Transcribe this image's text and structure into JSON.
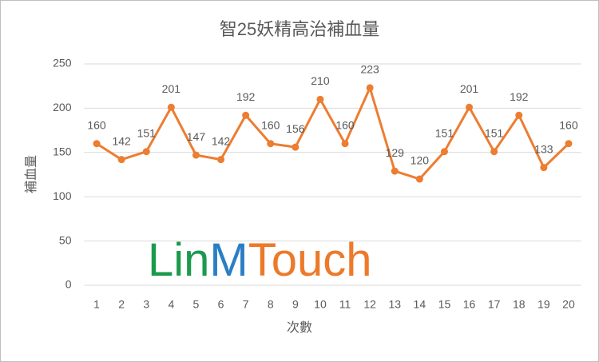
{
  "chart_data": {
    "type": "line",
    "title": "智25妖精高治補血量",
    "x_label": "次數",
    "y_label": "補血量",
    "categories": [
      "1",
      "2",
      "3",
      "4",
      "5",
      "6",
      "7",
      "8",
      "9",
      "10",
      "11",
      "12",
      "13",
      "14",
      "15",
      "16",
      "17",
      "18",
      "19",
      "20"
    ],
    "series": [
      {
        "name": "補血量",
        "color": "#ED7D31",
        "values": [
          160,
          142,
          151,
          201,
          147,
          142,
          192,
          160,
          156,
          210,
          160,
          223,
          129,
          120,
          151,
          201,
          151,
          192,
          133,
          160
        ]
      }
    ],
    "ylim": [
      0,
      250
    ],
    "yticks": [
      0,
      50,
      100,
      150,
      200,
      250
    ],
    "grid": true,
    "legend": false,
    "watermark": [
      {
        "text": "Lin",
        "color": "#1c9a4c"
      },
      {
        "text": "M",
        "color": "#2a7fc4"
      },
      {
        "text": "Touch",
        "color": "#ec7a2a"
      }
    ]
  }
}
